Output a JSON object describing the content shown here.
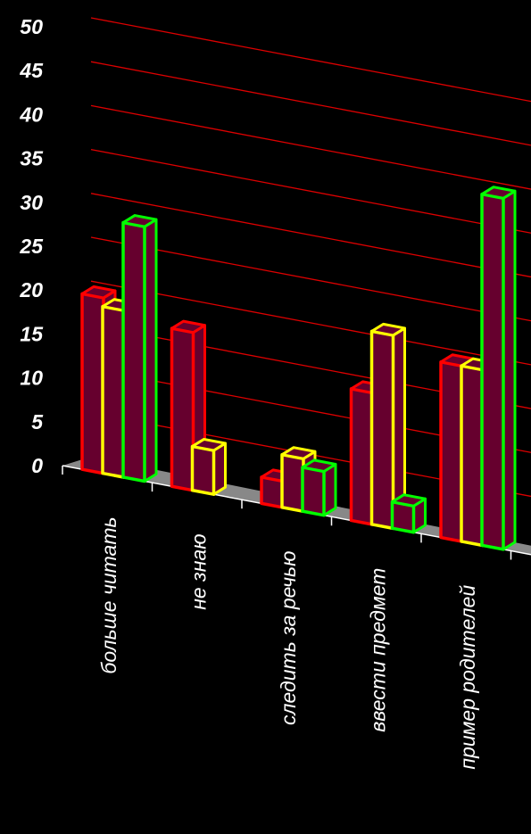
{
  "chart_data": {
    "type": "bar",
    "style": "3d-clustered",
    "categories": [
      "больше читать",
      "не знаю",
      "следить за речью",
      "ввести предмет",
      "пример родителей"
    ],
    "series": [
      {
        "color": "#ff0000",
        "values": [
          20,
          18,
          3,
          15,
          20
        ]
      },
      {
        "color": "#ffff00",
        "values": [
          19,
          5,
          6,
          22,
          20
        ]
      },
      {
        "color": "#00ff00",
        "values": [
          29,
          null,
          5,
          3,
          40
        ]
      }
    ],
    "bar_face_color": "#66002e",
    "gridline_color": "#dd0000",
    "floor_color": "#888888",
    "background": "#000000",
    "yticks": [
      "0",
      "5",
      "10",
      "15",
      "20",
      "25",
      "30",
      "35",
      "40",
      "45",
      "50"
    ],
    "ylim": [
      0,
      50
    ],
    "grid": true,
    "legend": "none"
  }
}
